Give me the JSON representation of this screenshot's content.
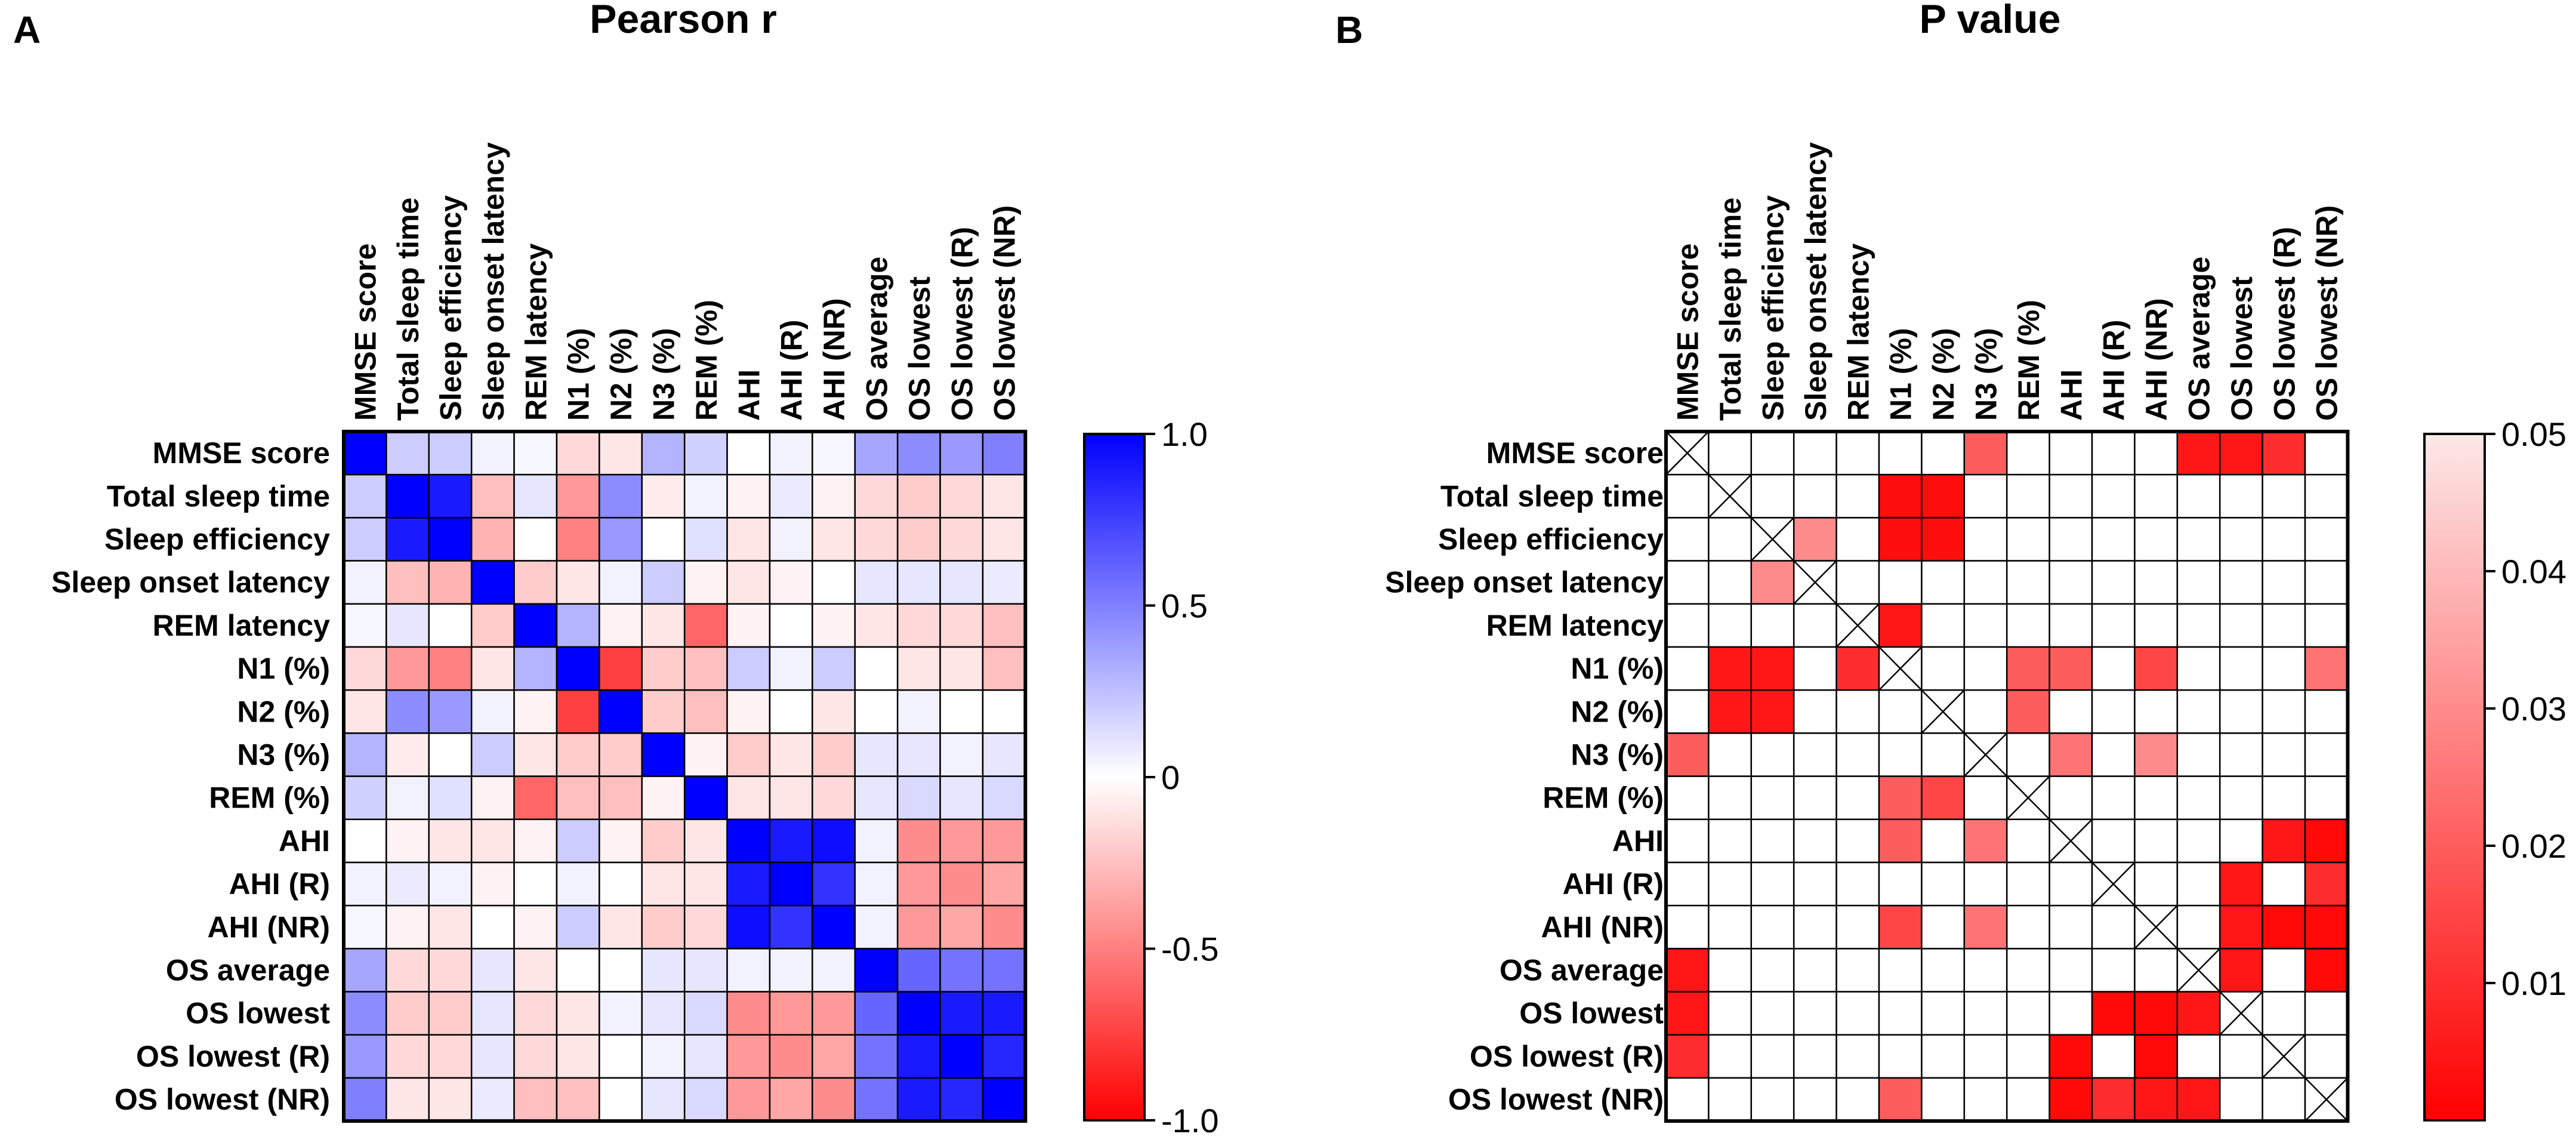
{
  "chart_data": [
    {
      "panel": "A",
      "title": "Pearson r",
      "type": "heatmap",
      "variables": [
        "MMSE score",
        "Total sleep time",
        "Sleep efficiency",
        "Sleep onset latency",
        "REM latency",
        "N1 (%)",
        "N2 (%)",
        "N3 (%)",
        "REM (%)",
        "AHI",
        "AHI (R)",
        "AHI (NR)",
        "OS average",
        "OS lowest",
        "OS lowest (R)",
        "OS lowest (NR)"
      ],
      "colorbar": {
        "min": -1.0,
        "max": 1.0,
        "ticks": [
          "1.0",
          "0.5",
          "0",
          "-0.5",
          "-1.0"
        ],
        "high_color": "#0000ff",
        "mid_color": "#ffffff",
        "low_color": "#ff0000"
      },
      "matrix": [
        [
          1.0,
          0.2,
          0.2,
          0.05,
          0.03,
          -0.15,
          -0.1,
          0.3,
          0.18,
          0.0,
          0.05,
          0.03,
          0.35,
          0.45,
          0.4,
          0.5
        ],
        [
          0.2,
          1.0,
          0.9,
          -0.25,
          0.1,
          -0.4,
          0.45,
          -0.08,
          0.05,
          -0.05,
          0.08,
          -0.05,
          -0.15,
          -0.2,
          -0.15,
          -0.1
        ],
        [
          0.2,
          0.9,
          1.0,
          -0.3,
          0.0,
          -0.5,
          0.4,
          0.0,
          0.12,
          -0.1,
          0.05,
          -0.1,
          -0.15,
          -0.2,
          -0.15,
          -0.1
        ],
        [
          0.05,
          -0.25,
          -0.3,
          1.0,
          -0.2,
          -0.1,
          0.05,
          0.2,
          -0.05,
          -0.1,
          -0.05,
          0.0,
          0.1,
          0.1,
          0.1,
          0.08
        ],
        [
          0.03,
          0.1,
          0.0,
          -0.2,
          1.0,
          0.3,
          -0.05,
          -0.1,
          -0.6,
          -0.05,
          0.0,
          -0.05,
          -0.1,
          -0.15,
          -0.15,
          -0.25
        ],
        [
          -0.15,
          -0.4,
          -0.5,
          -0.1,
          0.3,
          1.0,
          -0.75,
          -0.2,
          -0.25,
          0.2,
          0.05,
          0.2,
          0.0,
          -0.1,
          -0.1,
          -0.25
        ],
        [
          -0.1,
          0.45,
          0.4,
          0.05,
          -0.05,
          -0.75,
          1.0,
          -0.2,
          -0.25,
          -0.05,
          0.0,
          -0.1,
          0.0,
          0.05,
          0.0,
          0.0
        ],
        [
          0.3,
          -0.08,
          0.0,
          0.2,
          -0.1,
          -0.2,
          -0.2,
          1.0,
          -0.05,
          -0.2,
          -0.1,
          -0.2,
          0.1,
          0.1,
          0.05,
          0.1
        ],
        [
          0.18,
          0.05,
          0.12,
          -0.05,
          -0.6,
          -0.25,
          -0.25,
          -0.05,
          1.0,
          -0.1,
          -0.1,
          -0.15,
          0.1,
          0.15,
          0.1,
          0.15
        ],
        [
          0.0,
          -0.05,
          -0.1,
          -0.1,
          -0.05,
          0.2,
          -0.05,
          -0.2,
          -0.1,
          1.0,
          0.9,
          0.95,
          0.05,
          -0.45,
          -0.4,
          -0.4
        ],
        [
          0.05,
          0.08,
          0.05,
          -0.05,
          0.0,
          0.05,
          0.0,
          -0.1,
          -0.1,
          0.9,
          1.0,
          0.8,
          0.05,
          -0.4,
          -0.45,
          -0.35
        ],
        [
          0.03,
          -0.05,
          -0.1,
          0.0,
          -0.05,
          0.2,
          -0.1,
          -0.2,
          -0.15,
          0.95,
          0.8,
          1.0,
          0.05,
          -0.4,
          -0.35,
          -0.45
        ],
        [
          0.35,
          -0.15,
          -0.15,
          0.1,
          -0.1,
          0.0,
          0.0,
          0.1,
          0.1,
          0.05,
          0.05,
          0.05,
          1.0,
          0.6,
          0.55,
          0.55
        ],
        [
          0.45,
          -0.2,
          -0.2,
          0.1,
          -0.15,
          -0.1,
          0.05,
          0.1,
          0.15,
          -0.45,
          -0.4,
          -0.4,
          0.6,
          1.0,
          0.9,
          0.9
        ],
        [
          0.4,
          -0.15,
          -0.15,
          0.1,
          -0.15,
          -0.1,
          0.0,
          0.05,
          0.1,
          -0.4,
          -0.45,
          -0.35,
          0.55,
          0.9,
          1.0,
          0.85
        ],
        [
          0.5,
          -0.1,
          -0.1,
          0.08,
          -0.25,
          -0.25,
          0.0,
          0.1,
          0.15,
          -0.4,
          -0.35,
          -0.45,
          0.55,
          0.9,
          0.85,
          1.0
        ]
      ]
    },
    {
      "panel": "B",
      "title": "P value",
      "type": "heatmap",
      "variables": [
        "MMSE score",
        "Total sleep time",
        "Sleep efficiency",
        "Sleep onset latency",
        "REM latency",
        "N1 (%)",
        "N2 (%)",
        "N3 (%)",
        "REM (%)",
        "AHI",
        "AHI (R)",
        "AHI (NR)",
        "OS average",
        "OS lowest",
        "OS lowest (R)",
        "OS lowest (NR)"
      ],
      "colorbar": {
        "min": 0.0,
        "max": 0.05,
        "ticks": [
          "0.05",
          "0.04",
          "0.03",
          "0.02",
          "0.01"
        ],
        "low_color": "#ff0000",
        "high_color": "#fde8e8",
        "nonsignificant_color": "#ffffff"
      },
      "diagonal": "crossed",
      "matrix": [
        [
          null,
          null,
          null,
          null,
          null,
          null,
          null,
          0.02,
          null,
          null,
          null,
          null,
          0.005,
          0.005,
          0.01,
          null
        ],
        [
          null,
          null,
          null,
          null,
          null,
          0.003,
          0.003,
          null,
          null,
          null,
          null,
          null,
          null,
          null,
          null,
          null
        ],
        [
          null,
          null,
          null,
          0.03,
          null,
          0.003,
          0.003,
          null,
          null,
          null,
          null,
          null,
          null,
          null,
          null,
          null
        ],
        [
          null,
          null,
          0.03,
          null,
          null,
          null,
          null,
          null,
          null,
          null,
          null,
          null,
          null,
          null,
          null,
          null
        ],
        [
          null,
          null,
          null,
          null,
          null,
          0.005,
          null,
          null,
          null,
          null,
          null,
          null,
          null,
          null,
          null,
          null
        ],
        [
          null,
          0.005,
          0.005,
          null,
          0.01,
          null,
          null,
          null,
          0.02,
          0.02,
          null,
          0.015,
          null,
          null,
          null,
          0.025
        ],
        [
          null,
          0.005,
          0.005,
          null,
          null,
          null,
          null,
          null,
          0.02,
          null,
          null,
          null,
          null,
          null,
          null,
          null
        ],
        [
          0.02,
          null,
          null,
          null,
          null,
          null,
          null,
          null,
          null,
          0.025,
          null,
          0.03,
          null,
          null,
          null,
          null
        ],
        [
          null,
          null,
          null,
          null,
          null,
          0.02,
          0.015,
          null,
          null,
          null,
          null,
          null,
          null,
          null,
          null,
          null
        ],
        [
          null,
          null,
          null,
          null,
          null,
          0.02,
          null,
          0.025,
          null,
          null,
          null,
          null,
          null,
          null,
          0.005,
          0.002
        ],
        [
          null,
          null,
          null,
          null,
          null,
          null,
          null,
          null,
          null,
          null,
          null,
          null,
          null,
          0.005,
          null,
          0.01
        ],
        [
          null,
          null,
          null,
          null,
          null,
          0.015,
          null,
          0.025,
          null,
          null,
          null,
          null,
          null,
          0.005,
          0.002,
          0.002
        ],
        [
          0.005,
          null,
          null,
          null,
          null,
          null,
          null,
          null,
          null,
          null,
          null,
          null,
          null,
          0.005,
          null,
          0.002
        ],
        [
          0.005,
          null,
          null,
          null,
          null,
          null,
          null,
          null,
          null,
          null,
          0.002,
          0.002,
          0.005,
          null,
          null,
          null
        ],
        [
          0.01,
          null,
          null,
          null,
          null,
          null,
          null,
          null,
          null,
          0.002,
          null,
          0.002,
          null,
          null,
          null,
          null
        ],
        [
          null,
          null,
          null,
          null,
          null,
          0.02,
          null,
          null,
          null,
          0.002,
          0.01,
          0.005,
          0.005,
          null,
          null,
          null
        ]
      ]
    }
  ]
}
